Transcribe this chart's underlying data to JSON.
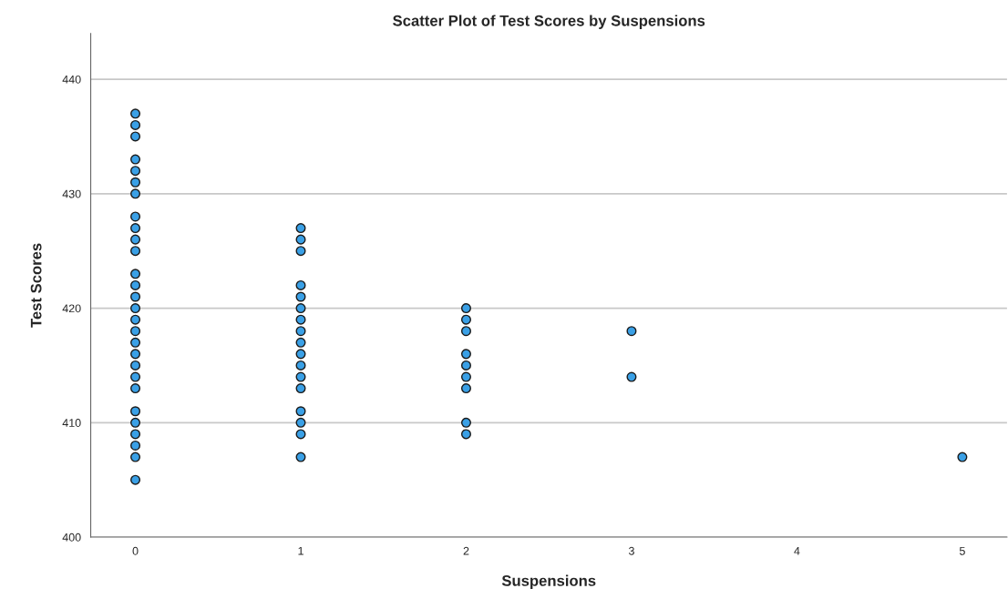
{
  "chart_data": {
    "type": "scatter",
    "title": "Scatter Plot of Test Scores by Suspensions",
    "xlabel": "Suspensions",
    "ylabel": "Test Scores",
    "series": [
      {
        "color": "#3aa0e6",
        "x": [
          0,
          0,
          0,
          0,
          0,
          0,
          0,
          0,
          0,
          0,
          0,
          0,
          0,
          0,
          0,
          0,
          0,
          0,
          0,
          0,
          0,
          0,
          0,
          0,
          0,
          0,
          0,
          0,
          1,
          1,
          1,
          1,
          1,
          1,
          1,
          1,
          1,
          1,
          1,
          1,
          1,
          1,
          1,
          1,
          1,
          2,
          2,
          2,
          2,
          2,
          2,
          2,
          2,
          2,
          3,
          3,
          5
        ],
        "values": [
          405,
          407,
          408,
          409,
          410,
          411,
          413,
          414,
          415,
          416,
          417,
          418,
          419,
          420,
          421,
          422,
          423,
          425,
          426,
          427,
          428,
          430,
          431,
          432,
          433,
          435,
          436,
          437,
          407,
          409,
          410,
          411,
          413,
          414,
          415,
          416,
          417,
          418,
          419,
          420,
          421,
          422,
          425,
          426,
          427,
          409,
          410,
          413,
          414,
          415,
          416,
          418,
          419,
          420,
          414,
          418,
          407
        ]
      }
    ],
    "xlim": [
      -0.27,
      5.27
    ],
    "xticks": [
      0,
      1,
      2,
      3,
      4,
      5
    ],
    "ylim": [
      400,
      444
    ],
    "yticks": [
      400,
      410,
      420,
      430,
      440
    ],
    "grid": "y",
    "marker": "circle",
    "legend": false
  }
}
